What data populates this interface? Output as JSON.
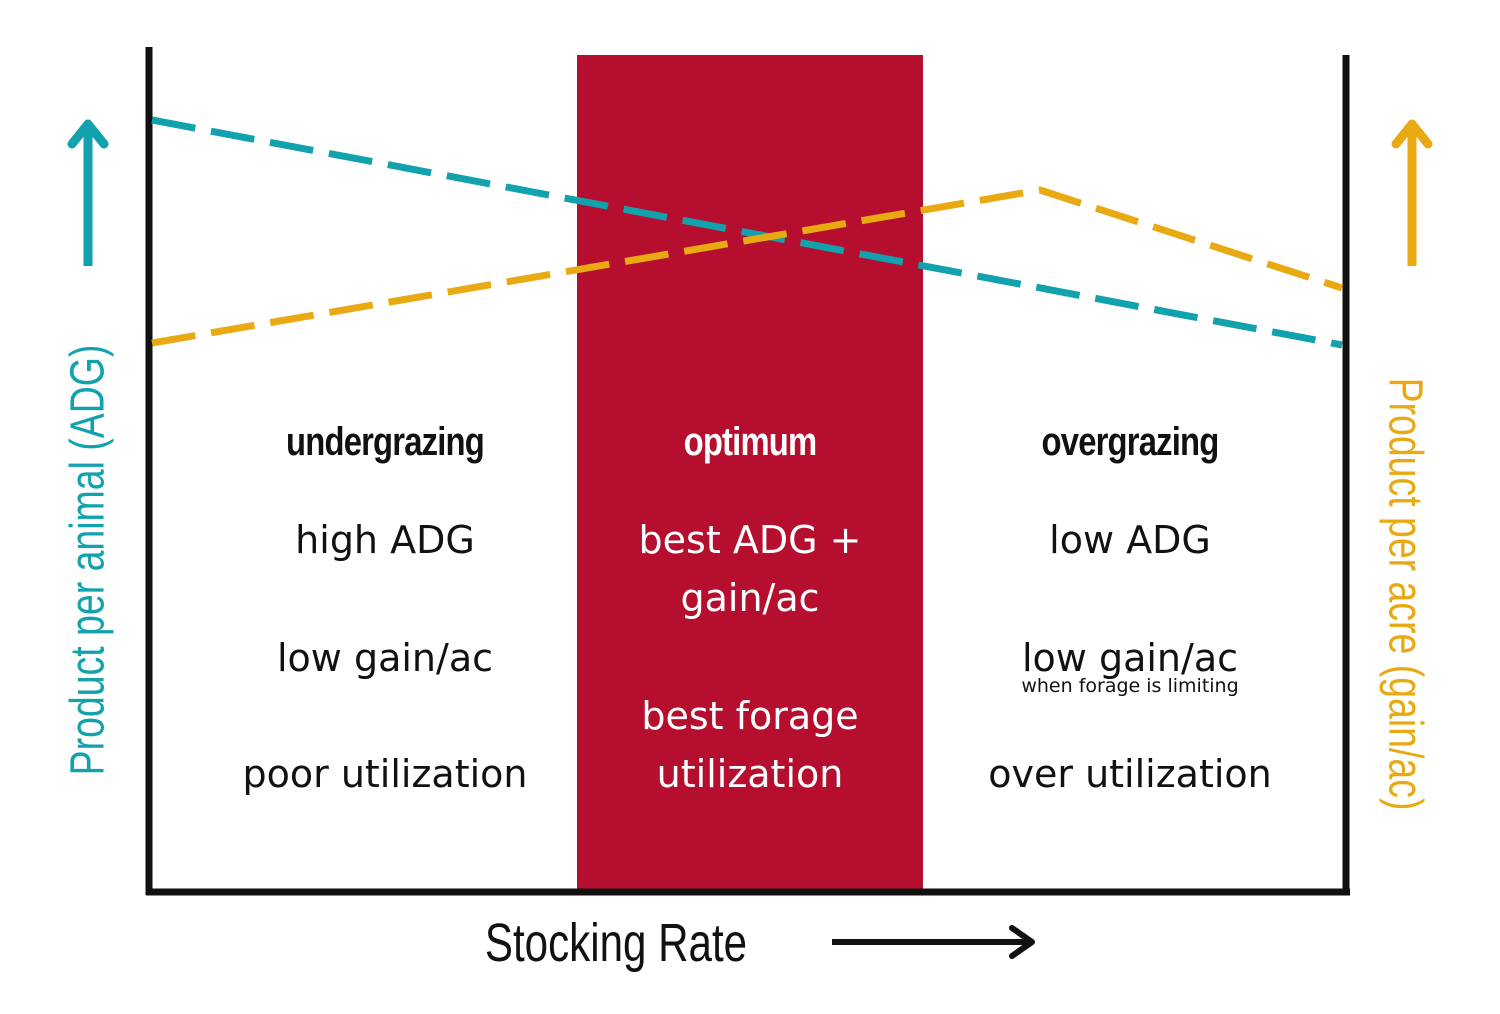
{
  "colors": {
    "teal": "#12a2ad",
    "gold": "#e9a913",
    "optimum_fill": "#b50e2f",
    "ink": "#111111",
    "white": "#ffffff"
  },
  "y_left_label": "Product per animal (ADG)",
  "y_right_label": "Product per acre (gain/ac)",
  "x_label": "Stocking Rate",
  "zones": [
    {
      "heading": "undergrazing",
      "items": [
        "high ADG",
        "low gain/ac",
        "poor utilization"
      ]
    },
    {
      "heading": "optimum",
      "items": [
        "best ADG +",
        "gain/ac",
        "best forage",
        "utilization"
      ]
    },
    {
      "heading": "overgrazing",
      "items": [
        "low ADG",
        "low gain/ac",
        "over utilization"
      ],
      "note": "when forage is limiting"
    }
  ],
  "series": [
    {
      "key": "adg",
      "color": "teal",
      "trend": "decreasing with stocking rate"
    },
    {
      "key": "gain_per_acre",
      "color": "gold",
      "trend": "rises to a peak then declines"
    }
  ]
}
